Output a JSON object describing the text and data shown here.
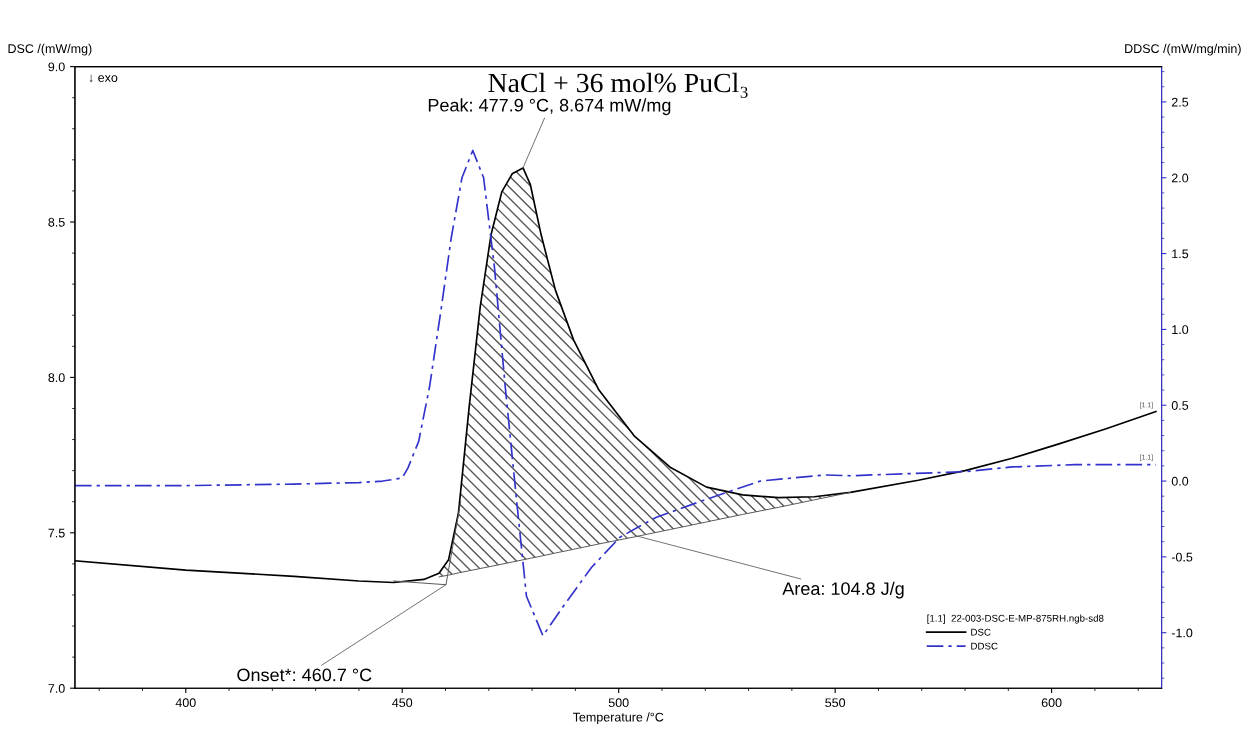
{
  "chart_data": {
    "type": "line",
    "title": "NaCl + 36 mol% PuCl₃",
    "xlabel": "Temperature /°C",
    "ylabel": "DSC /(mW/mg)",
    "y2label": "DDSC /(mW/mg/min)",
    "legend_title": "[1.1]  22-003-DSC-E-MP-875RH.ngb-sd8",
    "legend": "bottom right",
    "xlim": [
      374.4,
      625.4
    ],
    "xticks": [
      400,
      450,
      500,
      550,
      600
    ],
    "ylim": [
      7.0,
      9.0
    ],
    "yticks": [
      {
        "value": 7,
        "label": "7.0"
      },
      7.5,
      {
        "value": 8,
        "label": "8.0"
      },
      8.5,
      {
        "value": 9,
        "label": "9.0"
      }
    ],
    "y2lim": [
      -1.366,
      2.733
    ],
    "y2ticks": [
      {
        "value": -1,
        "label": "-1.0"
      },
      -0.5,
      {
        "value": 0,
        "label": "0.0"
      },
      0.5,
      {
        "value": 1,
        "label": "1.0"
      },
      1.5,
      {
        "value": 2,
        "label": "2.0"
      },
      2.5
    ],
    "grid": false,
    "series": [
      {
        "name": "DSC",
        "type": "line",
        "color": "#000000",
        "line_style": "solid",
        "x": [
          374.4,
          400,
          425,
          440,
          448,
          455,
          458.5,
          460.7,
          463.0,
          465.5,
          468.0,
          470.5,
          473.0,
          475.4,
          477.9,
          479.6,
          482.1,
          485.4,
          489.6,
          495.4,
          503.7,
          512.0,
          520.3,
          528.6,
          536.9,
          545.2,
          553.5,
          569.2,
          580.0,
          590.9,
          601.7,
          612.6,
          624.1
        ],
        "values": [
          7.41,
          7.38,
          7.36,
          7.345,
          7.34,
          7.35,
          7.37,
          7.413,
          7.565,
          7.91,
          8.225,
          8.458,
          8.597,
          8.655,
          8.674,
          8.62,
          8.458,
          8.28,
          8.12,
          7.96,
          7.81,
          7.71,
          7.647,
          7.622,
          7.613,
          7.616,
          7.63,
          7.669,
          7.7,
          7.74,
          7.786,
          7.835,
          7.89
        ]
      },
      {
        "name": "DDSC",
        "type": "line",
        "axis": "y2",
        "color": "#3333cc",
        "line_style": "dashdot",
        "x": [
          374.4,
          400,
          425,
          440,
          445.5,
          450,
          451.3,
          453.8,
          456.3,
          458.8,
          461.3,
          463.8,
          466.3,
          468.8,
          471.3,
          473.8,
          476.3,
          478.7,
          482.5,
          487.1,
          493.7,
          500.3,
          508.6,
          520.3,
          532.7,
          547.5,
          553.5,
          580.0,
          590.9,
          605.3,
          624.1
        ],
        "values": [
          -0.03,
          -0.03,
          -0.02,
          -0.01,
          0.0,
          0.02,
          0.085,
          0.262,
          0.62,
          1.097,
          1.6,
          2.0,
          2.18,
          2.0,
          1.41,
          0.62,
          -0.095,
          -0.76,
          -1.02,
          -0.83,
          -0.57,
          -0.37,
          -0.24,
          -0.12,
          0.0,
          0.04,
          0.035,
          0.062,
          0.093,
          0.108,
          0.108
        ]
      },
      {
        "type": "line",
        "color": "#555555",
        "line_style": "solid",
        "x": [
          458.5,
          460.7,
          463.0,
          465.5,
          468.0,
          470.5,
          473.0,
          475.4,
          477.9,
          479.6,
          482.1,
          485.4,
          489.6,
          495.4,
          503.7,
          512.0,
          520.3,
          528.6,
          536.9,
          545.2,
          553.5
        ],
        "values": [
          7.358,
          7.364,
          7.371,
          7.378,
          7.385,
          7.392,
          7.399,
          7.406,
          7.413,
          7.418,
          7.425,
          7.435,
          7.447,
          7.464,
          7.487,
          7.511,
          7.535,
          7.559,
          7.582,
          7.606,
          7.63
        ]
      },
      {
        "type": "line",
        "color": "#555555",
        "line_style": "solid",
        "x": [
          448.0,
          460.1,
          463.5
        ],
        "values": [
          7.345,
          7.333,
          7.6
        ]
      }
    ],
    "annotations": [
      {
        "text": "Peak: 477.9 °C, 8.674 mW/mg",
        "x": 477.9,
        "y": 8.674
      },
      {
        "text": "Onset*: 460.7 °C",
        "x": 460.1,
        "y": 7.333
      },
      {
        "text": "Area: 104.8 J/g",
        "x": 504.1,
        "y": 7.49
      },
      "↓ exo",
      {
        "text": "[1.1]",
        "x": 624.1,
        "y": 7.89
      },
      {
        "text": "[1.1]",
        "x": 624.1,
        "y": 7.722
      }
    ]
  }
}
